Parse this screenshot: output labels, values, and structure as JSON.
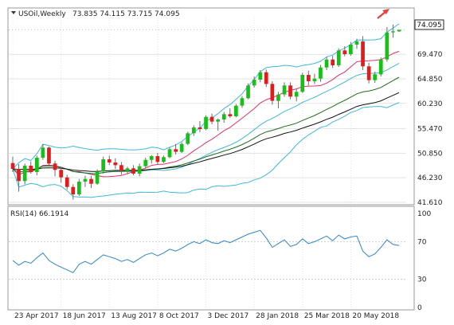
{
  "header": {
    "symbol": "USOil,Weekly",
    "ohlc": "73.835 74.115 73.715 74.095"
  },
  "price_badge": "74.095",
  "colors": {
    "bull": "#16c016",
    "bear": "#e21b1b",
    "wick": "#6d6d6d",
    "bollinger": "#3fb9d4",
    "ma_fast": "#e0306c",
    "ma_mid": "#1f6e1f",
    "ma_slow": "#111111",
    "rsi": "#2f86c8",
    "grid": "#e3e3e3",
    "axis": "#9a9a9a",
    "arrow": "#e5413a"
  },
  "chart_data": [
    {
      "type": "candlestick",
      "name_label": "",
      "x_dates": [
        "23 Apr 2017",
        "18 Jun 2017",
        "13 Aug 2017",
        "8 Oct 2017",
        "3 Dec 2017",
        "28 Jan 2018",
        "25 Mar 2018",
        "20 May 2018"
      ],
      "y_ticks": [
        "74.095",
        "69.470",
        "64.850",
        "60.230",
        "55.470",
        "50.850",
        "46.230",
        "41.610"
      ],
      "ylim": [
        41.6,
        76.4
      ],
      "candles": [
        [
          49.0,
          50.2,
          47.3,
          47.9
        ],
        [
          47.9,
          48.8,
          43.6,
          45.6
        ],
        [
          45.6,
          48.9,
          45.0,
          48.5
        ],
        [
          48.5,
          49.3,
          47.0,
          47.3
        ],
        [
          47.3,
          50.4,
          46.7,
          50.0
        ],
        [
          50.0,
          52.6,
          49.6,
          51.9
        ],
        [
          51.9,
          52.1,
          48.3,
          48.9
        ],
        [
          48.9,
          49.4,
          46.5,
          47.7
        ],
        [
          47.7,
          48.2,
          45.3,
          46.3
        ],
        [
          46.3,
          46.8,
          44.0,
          44.5
        ],
        [
          44.5,
          45.0,
          42.1,
          43.1
        ],
        [
          43.1,
          46.0,
          42.8,
          45.5
        ],
        [
          45.5,
          46.6,
          44.5,
          46.0
        ],
        [
          46.0,
          46.6,
          44.3,
          45.1
        ],
        [
          45.1,
          47.8,
          44.9,
          47.4
        ],
        [
          47.4,
          50.2,
          47.0,
          49.7
        ],
        [
          49.7,
          50.4,
          48.6,
          49.1
        ],
        [
          49.1,
          49.9,
          47.9,
          48.6
        ],
        [
          48.6,
          49.2,
          46.8,
          47.5
        ],
        [
          47.5,
          48.3,
          46.9,
          48.0
        ],
        [
          48.0,
          48.6,
          46.7,
          47.0
        ],
        [
          47.0,
          48.9,
          46.5,
          48.4
        ],
        [
          48.4,
          50.0,
          48.0,
          49.6
        ],
        [
          49.6,
          50.5,
          48.9,
          50.3
        ],
        [
          50.3,
          50.9,
          48.8,
          49.2
        ],
        [
          49.2,
          50.4,
          49.0,
          50.1
        ],
        [
          50.1,
          51.9,
          49.9,
          51.6
        ],
        [
          51.6,
          52.6,
          50.6,
          51.1
        ],
        [
          51.1,
          52.9,
          50.9,
          52.6
        ],
        [
          52.6,
          54.9,
          52.4,
          54.6
        ],
        [
          54.6,
          56.1,
          54.1,
          55.7
        ],
        [
          55.7,
          56.9,
          54.8,
          55.4
        ],
        [
          55.4,
          58.0,
          55.2,
          57.7
        ],
        [
          57.7,
          58.3,
          56.3,
          56.8
        ],
        [
          56.8,
          57.4,
          55.1,
          57.2
        ],
        [
          57.2,
          58.6,
          56.6,
          58.2
        ],
        [
          58.2,
          59.3,
          57.5,
          57.8
        ],
        [
          57.8,
          60.1,
          57.6,
          59.8
        ],
        [
          59.8,
          61.6,
          59.4,
          61.2
        ],
        [
          61.2,
          64.0,
          61.0,
          63.6
        ],
        [
          63.6,
          65.3,
          63.2,
          64.7
        ],
        [
          64.7,
          66.5,
          64.2,
          66.1
        ],
        [
          66.1,
          66.6,
          63.3,
          63.9
        ],
        [
          63.9,
          64.4,
          60.0,
          60.7
        ],
        [
          60.7,
          62.4,
          59.3,
          61.9
        ],
        [
          61.9,
          64.2,
          61.5,
          63.6
        ],
        [
          63.6,
          64.2,
          61.0,
          61.5
        ],
        [
          61.5,
          63.0,
          60.6,
          62.4
        ],
        [
          62.4,
          66.0,
          62.2,
          65.6
        ],
        [
          65.6,
          66.4,
          63.6,
          64.4
        ],
        [
          64.4,
          65.8,
          63.9,
          64.9
        ],
        [
          64.9,
          67.5,
          64.3,
          67.0
        ],
        [
          67.0,
          69.0,
          66.5,
          68.5
        ],
        [
          68.5,
          69.2,
          66.9,
          67.4
        ],
        [
          67.4,
          70.6,
          67.1,
          70.2
        ],
        [
          70.2,
          71.0,
          69.1,
          69.5
        ],
        [
          69.5,
          71.8,
          69.2,
          71.3
        ],
        [
          71.3,
          72.4,
          70.5,
          71.9
        ],
        [
          71.9,
          72.9,
          66.5,
          67.2
        ],
        [
          67.2,
          67.9,
          64.0,
          64.6
        ],
        [
          64.6,
          66.2,
          64.1,
          65.7
        ],
        [
          65.7,
          68.9,
          65.3,
          68.5
        ],
        [
          68.5,
          74.6,
          68.1,
          73.6
        ],
        [
          73.6,
          75.1,
          72.6,
          73.8
        ],
        [
          73.8,
          74.1,
          73.7,
          74.095
        ]
      ]
    },
    {
      "type": "line",
      "title": "RSI(14) 66.1914",
      "y_ticks": [
        "100",
        "70",
        "30",
        "0"
      ],
      "ylim": [
        0,
        100
      ],
      "values": [
        50,
        45,
        49,
        47,
        53,
        58,
        50,
        46,
        43,
        40,
        37,
        46,
        49,
        46,
        51,
        56,
        54,
        52,
        49,
        51,
        48,
        52,
        56,
        58,
        55,
        58,
        62,
        60,
        63,
        67,
        70,
        68,
        72,
        69,
        68,
        71,
        69,
        72,
        75,
        78,
        80,
        82,
        74,
        64,
        68,
        72,
        65,
        67,
        73,
        68,
        70,
        73,
        76,
        71,
        77,
        73,
        75,
        76,
        60,
        54,
        57,
        64,
        72,
        67,
        66
      ]
    }
  ]
}
